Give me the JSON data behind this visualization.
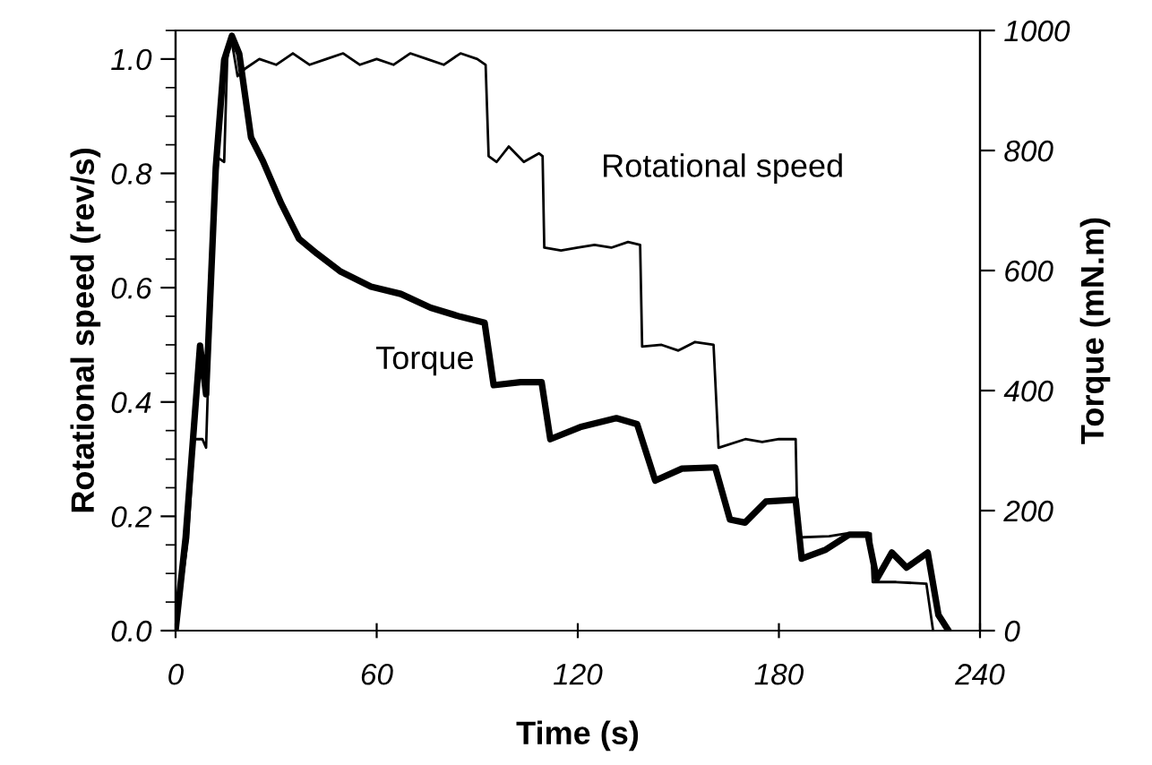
{
  "chart_data": {
    "type": "line",
    "xlabel": "Time (s)",
    "ylabel": "Rotational speed (rev/s)",
    "y2label": "Torque (mN.m)",
    "xlim": [
      0,
      240
    ],
    "xticks": [
      0,
      60,
      120,
      180,
      240
    ],
    "ylim": [
      0,
      1.05
    ],
    "yticks": [
      {
        "value": 0,
        "label": "0.0"
      },
      {
        "value": 0.2,
        "label": "0.2"
      },
      {
        "value": 0.4,
        "label": "0.4"
      },
      {
        "value": 0.6,
        "label": "0.6"
      },
      {
        "value": 0.8,
        "label": "0.8"
      },
      {
        "value": 1.0,
        "label": "1.0"
      }
    ],
    "y2lim": [
      0,
      1000
    ],
    "y2ticks": [
      0,
      200,
      400,
      600,
      800,
      1000
    ],
    "grid": false,
    "legend": false,
    "marker": "none",
    "line_style": "solid",
    "series": [
      {
        "name": "Rotational speed",
        "color": "#000000",
        "axis": "y",
        "x": [
          0,
          3.75,
          5.5,
          8,
          9.1,
          10.9,
          12.7,
          14.5,
          15.4,
          16.5,
          18.5,
          20.7,
          25,
          30,
          35,
          40,
          45,
          50,
          55,
          60,
          65,
          70,
          75,
          80,
          85,
          90,
          92.5,
          93.4,
          95.8,
          99.4,
          103.9,
          108.4,
          109.5,
          110,
          115,
          120,
          125,
          130,
          135,
          138.6,
          139.2,
          145,
          150,
          155,
          160.5,
          162,
          170,
          175,
          180,
          185,
          185.6,
          195,
          200,
          207.4,
          208,
          215,
          224,
          226
        ],
        "values": [
          0,
          0.163,
          0.335,
          0.335,
          0.32,
          0.665,
          0.827,
          0.82,
          1.0,
          1.04,
          0.97,
          0.983,
          1.0,
          0.99,
          1.01,
          0.99,
          1.0,
          1.01,
          0.99,
          1.0,
          0.99,
          1.01,
          1.0,
          0.99,
          1.01,
          1.0,
          0.99,
          0.83,
          0.82,
          0.847,
          0.82,
          0.835,
          0.83,
          0.67,
          0.665,
          0.67,
          0.675,
          0.67,
          0.68,
          0.675,
          0.497,
          0.5,
          0.49,
          0.505,
          0.5,
          0.32,
          0.335,
          0.33,
          0.335,
          0.335,
          0.163,
          0.165,
          0.17,
          0.17,
          0.085,
          0.085,
          0.082,
          0
        ]
      },
      {
        "name": "Torque",
        "color": "#000000",
        "axis": "y2",
        "x": [
          0,
          3,
          7.3,
          9.1,
          12,
          14.5,
          16.8,
          19,
          22.5,
          26.1,
          31.5,
          36.8,
          42.2,
          49.3,
          58.3,
          67.2,
          76.1,
          85,
          92.2,
          94.9,
          102.9,
          109.2,
          111.8,
          120.7,
          131.5,
          137.7,
          143.1,
          151.1,
          161,
          165.4,
          169.9,
          176.1,
          185,
          186.8,
          194,
          201,
          206.5,
          209.2,
          213.7,
          218.1,
          224.4,
          227.6,
          230.6
        ],
        "values": [
          0,
          155,
          475,
          394,
          772,
          951,
          991,
          961,
          822,
          782,
          712,
          653,
          628,
          598,
          573,
          561,
          538,
          523,
          513,
          409,
          414,
          414,
          319,
          339,
          354,
          344,
          250,
          270,
          272,
          185,
          180,
          215,
          218,
          120,
          135,
          160,
          160,
          86,
          130,
          105,
          130,
          26,
          0
        ]
      }
    ]
  }
}
